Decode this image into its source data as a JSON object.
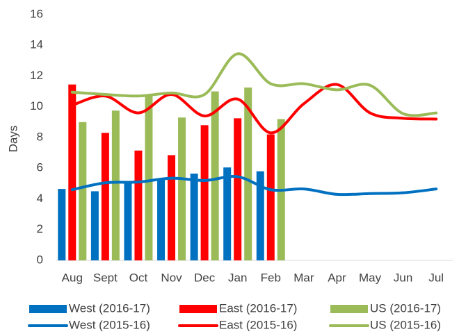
{
  "chart_data": {
    "type": "combo",
    "y_label": "Days",
    "categories": [
      "Aug",
      "Sept",
      "Oct",
      "Nov",
      "Dec",
      "Jan",
      "Feb",
      "Mar",
      "Apr",
      "May",
      "Jun",
      "Jul"
    ],
    "ylim": [
      0,
      16
    ],
    "yticks": [
      0,
      2,
      4,
      6,
      8,
      10,
      12,
      14,
      16
    ],
    "grid": false,
    "legend": "bottom",
    "series": [
      {
        "name": "West (2016-17)",
        "type": "bar",
        "color": "#0070c0",
        "values": [
          4.65,
          4.5,
          5.1,
          5.3,
          5.65,
          6.05,
          5.8,
          null,
          null,
          null,
          null,
          null
        ]
      },
      {
        "name": "East (2016-17)",
        "type": "bar",
        "color": "#ff0000",
        "values": [
          11.45,
          8.3,
          7.15,
          6.85,
          8.8,
          9.25,
          8.2,
          null,
          null,
          null,
          null,
          null
        ]
      },
      {
        "name": "US (2016-17)",
        "type": "bar",
        "color": "#9bbb59",
        "values": [
          9.0,
          9.75,
          10.7,
          9.3,
          11.0,
          11.25,
          9.2,
          null,
          null,
          null,
          null,
          null
        ]
      },
      {
        "name": "West (2015-16)",
        "type": "line",
        "color": "#0070c0",
        "values": [
          4.6,
          5.05,
          5.1,
          5.35,
          5.2,
          5.45,
          4.6,
          4.65,
          4.3,
          4.35,
          4.4,
          4.65
        ]
      },
      {
        "name": "East (2015-16)",
        "type": "line",
        "color": "#ff0000",
        "values": [
          10.1,
          10.7,
          9.6,
          10.8,
          9.4,
          10.5,
          8.3,
          10.2,
          11.45,
          9.6,
          9.25,
          9.2
        ]
      },
      {
        "name": "US (2015-16)",
        "type": "line",
        "color": "#9bbb59",
        "values": [
          10.95,
          10.8,
          10.7,
          10.9,
          10.8,
          13.45,
          11.5,
          11.5,
          11.1,
          11.4,
          9.55,
          9.6
        ]
      }
    ]
  }
}
